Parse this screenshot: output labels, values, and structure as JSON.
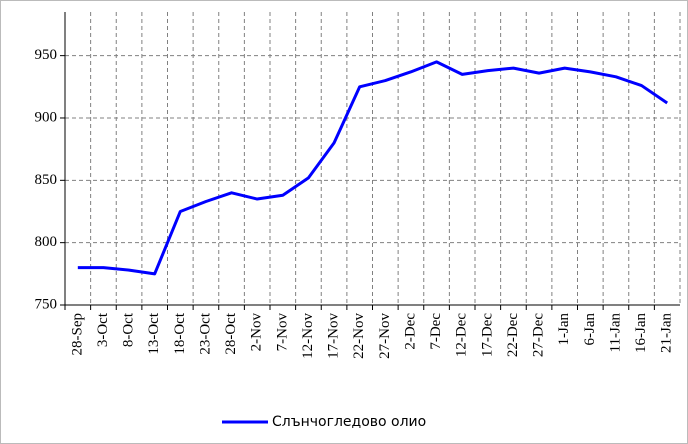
{
  "chart_data": {
    "type": "line",
    "categories": [
      "28-Sep",
      "3-Oct",
      "8-Oct",
      "13-Oct",
      "18-Oct",
      "23-Oct",
      "28-Oct",
      "2-Nov",
      "7-Nov",
      "12-Nov",
      "17-Nov",
      "22-Nov",
      "27-Nov",
      "2-Dec",
      "7-Dec",
      "12-Dec",
      "17-Dec",
      "22-Dec",
      "27-Dec",
      "1-Jan",
      "6-Jan",
      "11-Jan",
      "16-Jan",
      "21-Jan"
    ],
    "series": [
      {
        "name": "Слънчогледово олио",
        "color": "#0000ff",
        "values": [
          780,
          780,
          778,
          775,
          825,
          833,
          840,
          835,
          838,
          852,
          880,
          925,
          930,
          937,
          945,
          935,
          938,
          940,
          936,
          940,
          937,
          933,
          926,
          912
        ]
      }
    ],
    "ylim": [
      750,
      985
    ],
    "yticks": [
      750,
      800,
      850,
      900,
      950
    ],
    "grid": true,
    "legend": "bottom"
  }
}
